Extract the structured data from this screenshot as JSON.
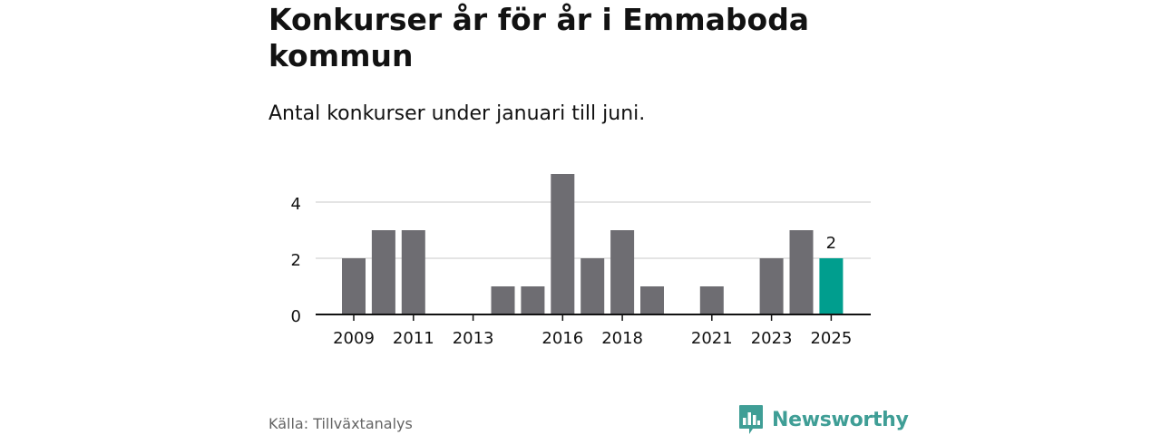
{
  "header": {
    "title": "Konkurser år för år i Emmaboda kommun",
    "subtitle": "Antal konkurser under januari till juni."
  },
  "chart_data": {
    "type": "bar",
    "title": "Konkurser år för år i Emmaboda kommun",
    "subtitle": "Antal konkurser under januari till juni.",
    "categories": [
      "2009",
      "2010",
      "2011",
      "2012",
      "2013",
      "2014",
      "2015",
      "2016",
      "2017",
      "2018",
      "2019",
      "2020",
      "2021",
      "2022",
      "2023",
      "2024",
      "2025"
    ],
    "values": [
      2,
      3,
      3,
      0,
      0,
      1,
      1,
      5,
      2,
      3,
      1,
      0,
      1,
      0,
      2,
      3,
      2
    ],
    "x_tick_labels": [
      "2009",
      "2011",
      "2013",
      "2016",
      "2018",
      "2021",
      "2023",
      "2025"
    ],
    "y_ticks": [
      0,
      2,
      4
    ],
    "ylim": [
      0,
      5
    ],
    "grid": true,
    "highlight": {
      "category": "2025",
      "label": "2"
    },
    "colors": {
      "bar": "#6e6d72",
      "highlight": "#009e8e",
      "grid": "#dcdcdc",
      "axis": "#121212"
    },
    "xlabel": "",
    "ylabel": ""
  },
  "footer": {
    "source": "Källa: Tillväxtanalys",
    "brand_name": "Newsworthy",
    "brand_icon": "newsworthy-logo-icon",
    "brand_color": "#3f9e96"
  }
}
